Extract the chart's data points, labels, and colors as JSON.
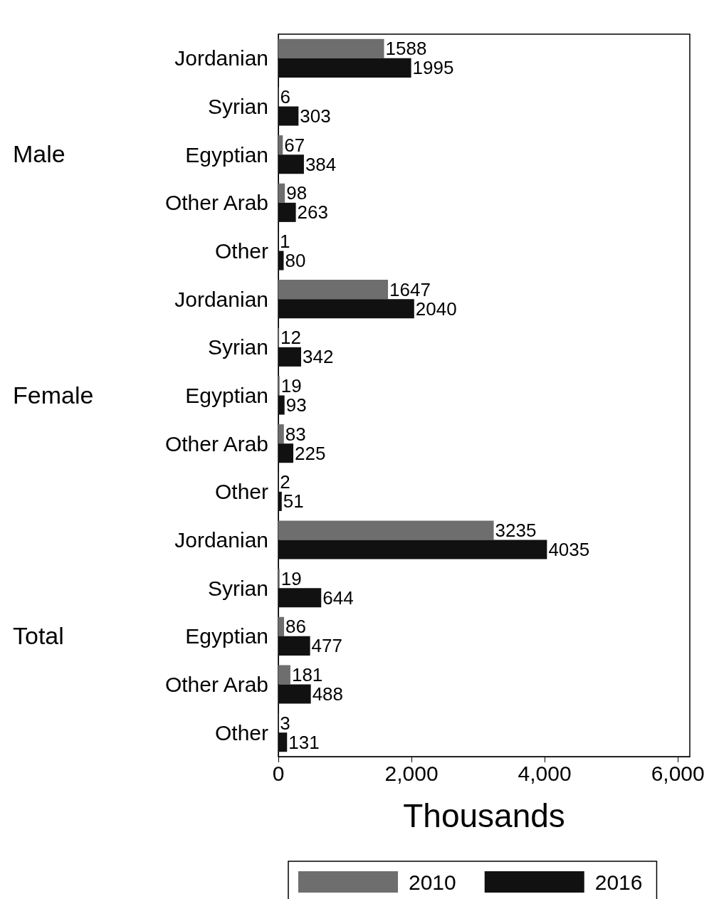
{
  "chart_data": {
    "type": "bar",
    "orientation": "horizontal",
    "xlabel": "Thousands",
    "categories": [
      "Jordanian",
      "Syrian",
      "Egyptian",
      "Other Arab",
      "Other",
      "Jordanian",
      "Syrian",
      "Egyptian",
      "Other Arab",
      "Other",
      "Jordanian",
      "Syrian",
      "Egyptian",
      "Other Arab",
      "Other"
    ],
    "annotations": [
      "Male",
      "Female",
      "Total"
    ],
    "series": [
      {
        "name": "2010",
        "color": "#6e6e6e",
        "values": [
          1588,
          6,
          67,
          98,
          1,
          1647,
          12,
          19,
          83,
          2,
          3235,
          19,
          86,
          181,
          3
        ]
      },
      {
        "name": "2016",
        "color": "#111111",
        "values": [
          1995,
          303,
          384,
          263,
          80,
          2040,
          342,
          93,
          225,
          51,
          4035,
          644,
          477,
          488,
          131
        ]
      }
    ],
    "xlim": [
      0,
      6180
    ],
    "xticks": [
      0,
      {
        "value": 2000,
        "label": "2,000"
      },
      {
        "value": 4000,
        "label": "4,000"
      },
      {
        "value": 6000,
        "label": "6,000"
      }
    ],
    "data_labels": true,
    "grid": false,
    "legend": "bottom"
  }
}
